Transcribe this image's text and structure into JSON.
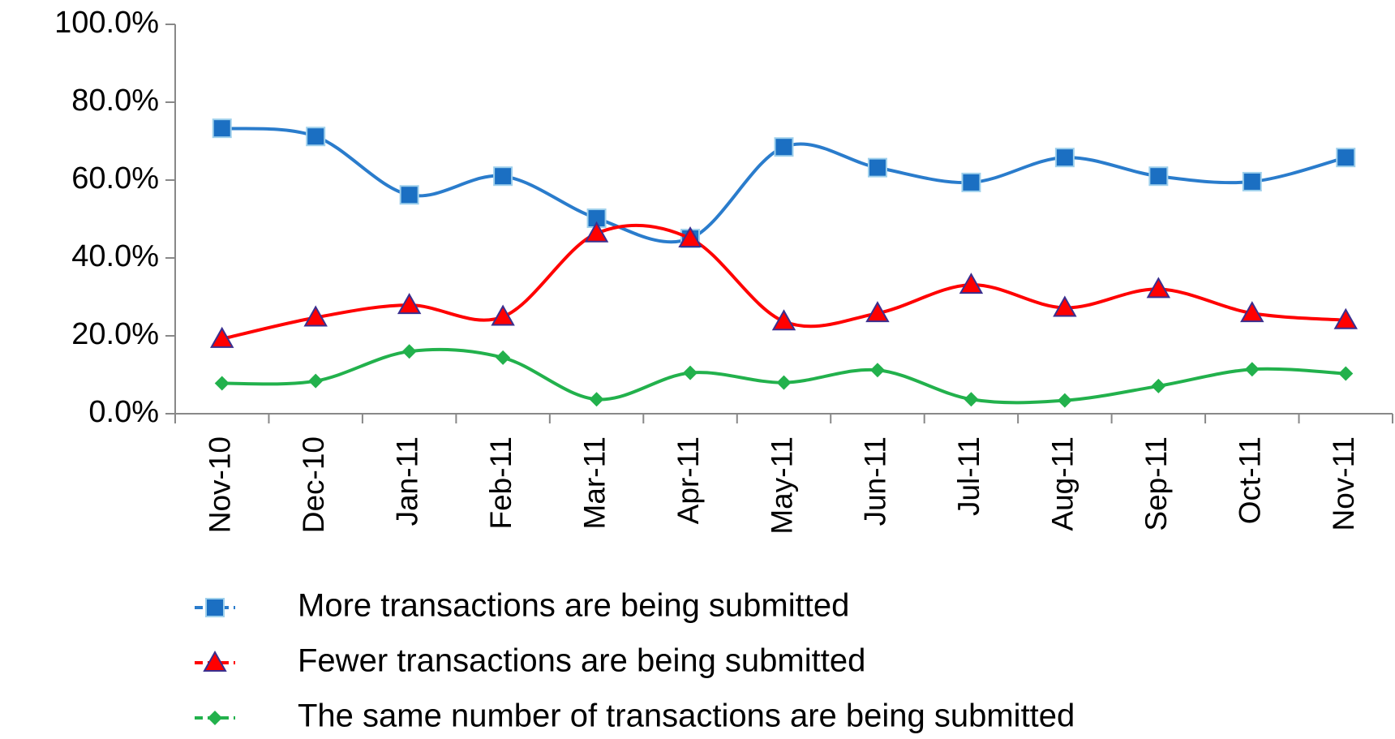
{
  "chart_data": {
    "type": "line",
    "categories": [
      "Nov-10",
      "Dec-10",
      "Jan-11",
      "Feb-11",
      "Mar-11",
      "Apr-11",
      "May-11",
      "Jun-11",
      "Jul-11",
      "Aug-11",
      "Sep-11",
      "Oct-11",
      "Nov-11"
    ],
    "series": [
      {
        "name": "More transactions are being submitted",
        "color": "#2a7ccc",
        "marker": "square",
        "values": [
          73.3,
          71.2,
          56.2,
          61,
          50.2,
          45,
          68.5,
          63.2,
          59.4,
          65.8,
          61,
          59.6,
          65.8
        ]
      },
      {
        "name": "Fewer transactions are being submitted",
        "color": "#ff0000",
        "marker": "triangle",
        "values": [
          19.2,
          24.7,
          27.9,
          24.9,
          46.3,
          45,
          23.7,
          25.8,
          33.1,
          27.2,
          32,
          25.8,
          24
        ]
      },
      {
        "name": "The same number of transactions are being submitted",
        "color": "#22b14c",
        "marker": "diamond",
        "values": [
          7.8,
          8.4,
          16,
          14.4,
          3.7,
          10.5,
          8,
          11.2,
          3.7,
          3.4,
          7.1,
          11.4,
          10.3
        ]
      }
    ],
    "ylim": [
      0,
      100
    ],
    "yticks": [
      {
        "value": 0,
        "label": "0.0%"
      },
      {
        "value": 20,
        "label": "20.0%"
      },
      {
        "value": 40,
        "label": "40.0%"
      },
      {
        "value": 60,
        "label": "60.0%"
      },
      {
        "value": 80,
        "label": "80.0%"
      },
      {
        "value": 100,
        "label": "100.0%"
      }
    ],
    "grid": false,
    "smooth": true,
    "legend": "bottom"
  }
}
